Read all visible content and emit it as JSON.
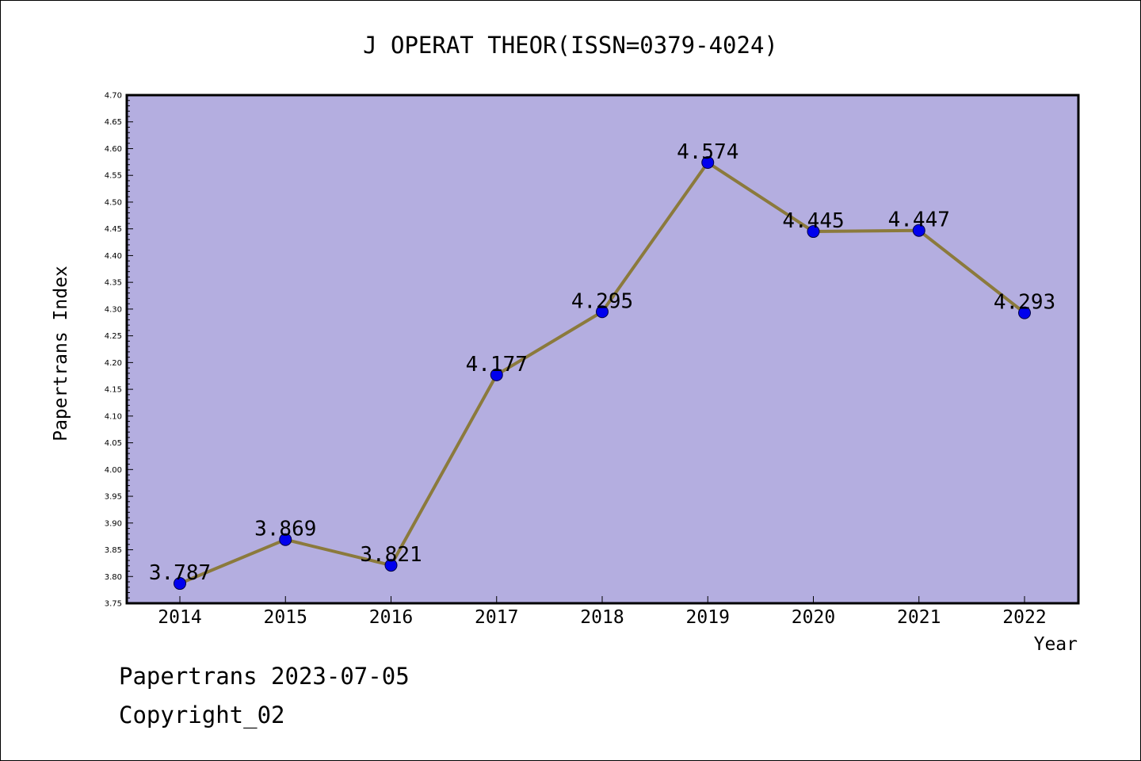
{
  "chart_data": {
    "type": "line",
    "title": "J OPERAT THEOR(ISSN=0379-4024)",
    "xlabel": "Year",
    "ylabel": "Papertrans Index",
    "categories": [
      "2014",
      "2015",
      "2016",
      "2017",
      "2018",
      "2019",
      "2020",
      "2021",
      "2022"
    ],
    "series": [
      {
        "values": [
          3.787,
          3.869,
          3.821,
          4.177,
          4.295,
          4.574,
          4.445,
          4.447,
          4.293
        ]
      }
    ],
    "data_labels": [
      "3.787",
      "3.869",
      "3.821",
      "4.177",
      "4.295",
      "4.574",
      "4.445",
      "4.447",
      "4.293"
    ],
    "ylim": [
      3.75,
      4.7
    ],
    "yticks": [
      "3.75",
      "3.80",
      "3.85",
      "3.90",
      "3.95",
      "4.00",
      "4.05",
      "4.10",
      "4.15",
      "4.20",
      "4.25",
      "4.30",
      "4.35",
      "4.40",
      "4.45",
      "4.50",
      "4.55",
      "4.60",
      "4.65",
      "4.70"
    ],
    "grid": false,
    "colors": {
      "plot_background": "#b4aee0",
      "line": "#8b7a3c",
      "marker": "#0000ee"
    }
  },
  "footer": {
    "line1": "Papertrans 2023-07-05",
    "line2": "Copyright_02"
  }
}
